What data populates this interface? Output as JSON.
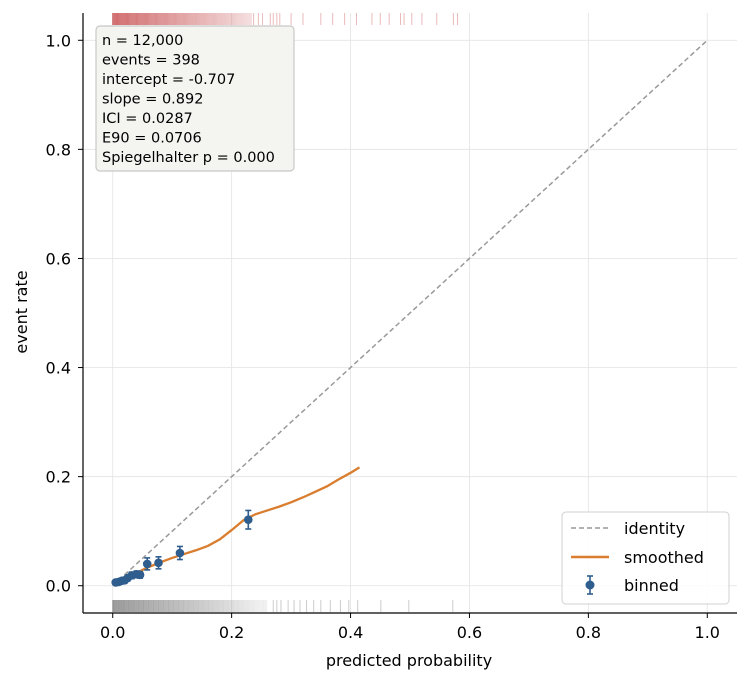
{
  "chart_data": {
    "type": "scatter",
    "xlabel": "predicted probability",
    "ylabel": "event rate",
    "xlim": [
      -0.05,
      1.05
    ],
    "ylim": [
      -0.05,
      1.05
    ],
    "x_ticks": [
      0.0,
      0.2,
      0.4,
      0.6,
      0.8,
      1.0
    ],
    "y_ticks": [
      0.0,
      0.2,
      0.4,
      0.6,
      0.8,
      1.0
    ],
    "x_tick_labels": [
      "0.0",
      "0.2",
      "0.4",
      "0.6",
      "0.8",
      "1.0"
    ],
    "y_tick_labels": [
      "0.0",
      "0.2",
      "0.4",
      "0.6",
      "0.8",
      "1.0"
    ],
    "grid": true,
    "legend_position": "bottom-right",
    "stats_lines": [
      "n = 12,000",
      "events = 398",
      "intercept = -0.707",
      "slope = 0.892",
      "ICI = 0.0287",
      "E90 = 0.0706",
      "Spiegelhalter p = 0.000"
    ],
    "series": [
      {
        "name": "identity",
        "style": "dashed-line",
        "color": "#999999",
        "x": [
          0.0,
          1.0
        ],
        "y": [
          0.0,
          1.0
        ]
      },
      {
        "name": "smoothed",
        "style": "line",
        "color": "#d97d2e",
        "x": [
          0.01,
          0.02,
          0.03,
          0.04,
          0.05,
          0.06,
          0.08,
          0.1,
          0.12,
          0.14,
          0.16,
          0.18,
          0.2,
          0.22,
          0.24,
          0.26,
          0.28,
          0.3,
          0.32,
          0.34,
          0.36,
          0.38,
          0.4,
          0.415
        ],
        "y": [
          0.008,
          0.013,
          0.018,
          0.023,
          0.029,
          0.034,
          0.043,
          0.051,
          0.058,
          0.065,
          0.073,
          0.085,
          0.102,
          0.12,
          0.131,
          0.138,
          0.145,
          0.153,
          0.162,
          0.172,
          0.182,
          0.195,
          0.207,
          0.217
        ]
      },
      {
        "name": "binned",
        "style": "points-with-error-bars",
        "color": "#2f5d8e",
        "x": [
          0.005,
          0.01,
          0.015,
          0.02,
          0.025,
          0.032,
          0.04,
          0.046,
          0.058,
          0.077,
          0.113,
          0.228
        ],
        "y": [
          0.006,
          0.007,
          0.009,
          0.01,
          0.014,
          0.019,
          0.021,
          0.02,
          0.04,
          0.042,
          0.06,
          0.121
        ],
        "err": [
          0.004,
          0.004,
          0.004,
          0.005,
          0.005,
          0.006,
          0.006,
          0.006,
          0.011,
          0.011,
          0.012,
          0.017
        ]
      }
    ],
    "rug": {
      "events_color": "#c0393b",
      "nonevents_color": "#555555",
      "events_sparse_x": [
        0.237,
        0.245,
        0.252,
        0.265,
        0.27,
        0.276,
        0.281,
        0.3,
        0.32,
        0.35,
        0.37,
        0.39,
        0.41,
        0.436,
        0.45,
        0.465,
        0.484,
        0.49,
        0.503,
        0.52,
        0.545,
        0.573,
        0.58
      ],
      "nonevents_sparse_x": [
        0.27,
        0.276,
        0.283,
        0.295,
        0.305,
        0.315,
        0.326,
        0.338,
        0.35,
        0.366,
        0.383,
        0.397,
        0.412,
        0.451,
        0.498,
        0.572
      ],
      "events_dense_range": [
        0.0,
        0.235
      ],
      "nonevents_dense_range": [
        0.0,
        0.26
      ]
    }
  }
}
